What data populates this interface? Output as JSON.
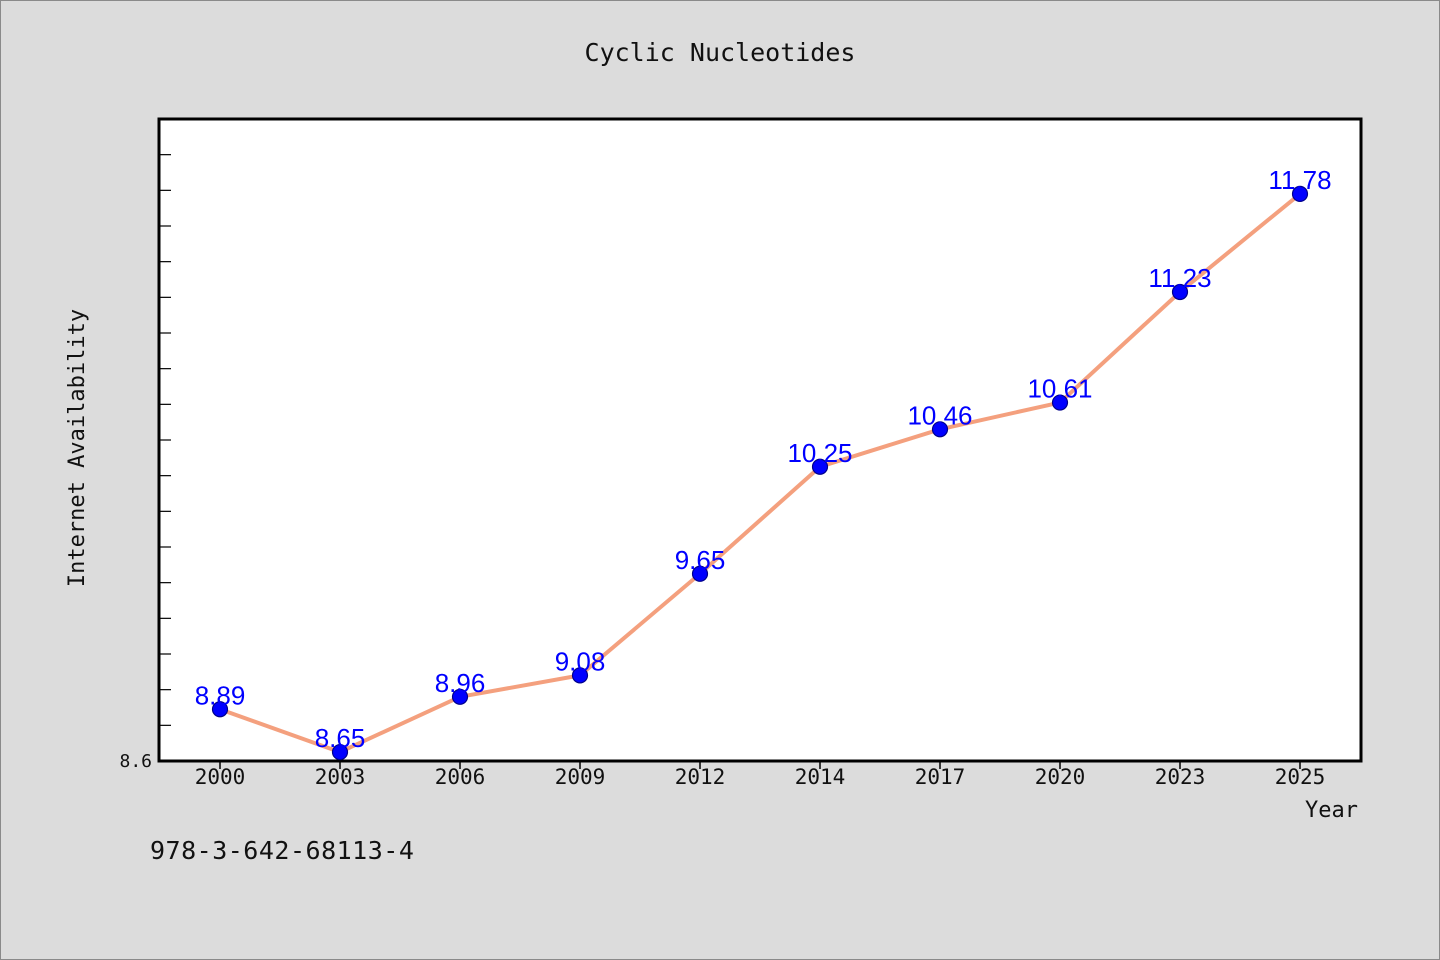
{
  "chart_data": {
    "type": "line",
    "title": "Cyclic Nucleotides",
    "xlabel": "Year",
    "ylabel": "Internet Availability",
    "categories": [
      "2000",
      "2003",
      "2006",
      "2009",
      "2012",
      "2014",
      "2017",
      "2020",
      "2023",
      "2025"
    ],
    "series": [
      {
        "values": [
          8.89,
          8.65,
          8.96,
          9.08,
          9.65,
          10.25,
          10.46,
          10.61,
          11.23,
          11.78
        ],
        "line_color": "#f4a07e",
        "marker_color": "#0000ff",
        "label_color": "#0000ff"
      }
    ],
    "ylim": [
      8.6,
      12.2
    ],
    "ytick_labels": [
      "8.6"
    ],
    "grid": false,
    "legend": "none"
  },
  "footer": {
    "code": "978-3-642-68113-4"
  }
}
